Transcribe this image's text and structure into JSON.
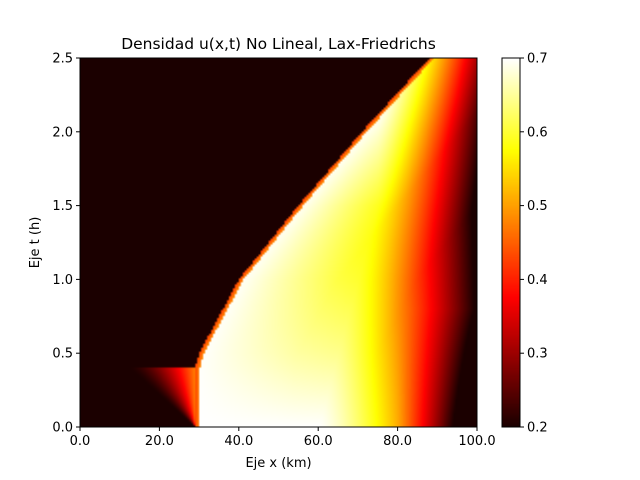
{
  "chart_data": {
    "type": "heatmap",
    "title": "Densidad u(x,t) No Lineal, Lax-Friedrichs",
    "xlabel": "Eje x (km)",
    "ylabel": "Eje t (h)",
    "xlim": [
      0,
      100
    ],
    "ylim": [
      0,
      2.5
    ],
    "xticks": [
      0,
      20,
      40,
      60,
      80,
      100
    ],
    "xtick_labels": [
      "0.0",
      "20.0",
      "40.0",
      "60.0",
      "80.0",
      "100.0"
    ],
    "yticks": [
      0,
      0.5,
      1.0,
      1.5,
      2.0,
      2.5
    ],
    "ytick_labels": [
      "0.0",
      "0.5",
      "1.0",
      "1.5",
      "2.0",
      "2.5"
    ],
    "colormap": "hot",
    "colorbar": {
      "range": [
        0.2,
        0.7
      ],
      "ticks": [
        0.2,
        0.3,
        0.4,
        0.5,
        0.6,
        0.7
      ],
      "tick_labels": [
        "0.2",
        "0.3",
        "0.4",
        "0.5",
        "0.6",
        "0.7"
      ]
    },
    "features": {
      "background_density": 0.2,
      "max_density": 0.7,
      "shock_path": [
        [
          29,
          0.4
        ],
        [
          30,
          0.5
        ],
        [
          40,
          1.0
        ],
        [
          55,
          1.5
        ],
        [
          71,
          2.0
        ],
        [
          88,
          2.5
        ]
      ]
    }
  }
}
